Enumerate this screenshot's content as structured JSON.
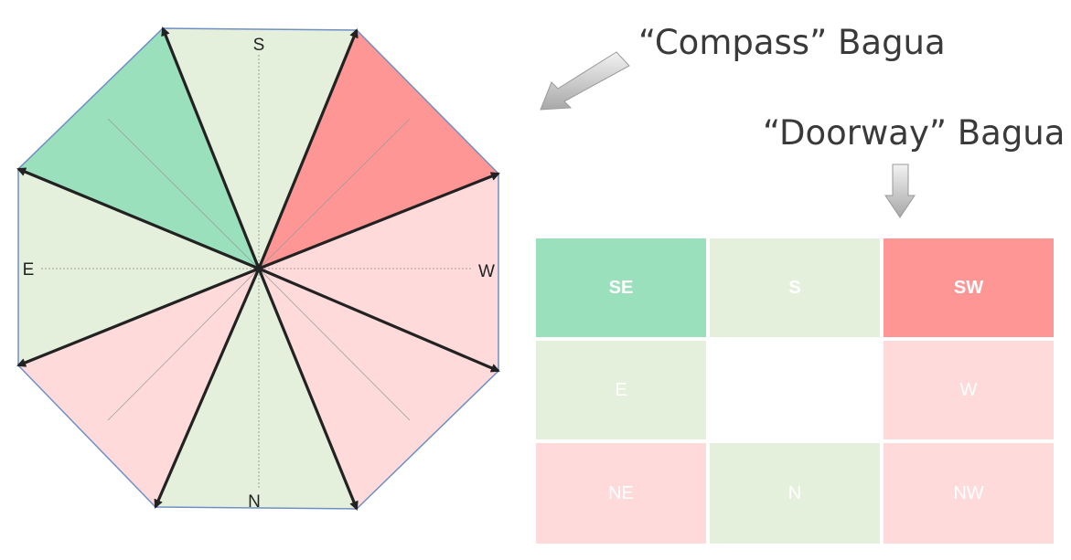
{
  "compass_bagua": {
    "title": "“Compass” Bagua",
    "labels": {
      "top": "S",
      "left": "E",
      "right": "W",
      "bottom": "N"
    },
    "sectors": [
      {
        "direction": "S",
        "color": "#e4f0dc"
      },
      {
        "direction": "SW",
        "color": "#ff9696"
      },
      {
        "direction": "W",
        "color": "#ffdada"
      },
      {
        "direction": "NW",
        "color": "#ffdada"
      },
      {
        "direction": "N",
        "color": "#e4f0dc"
      },
      {
        "direction": "NE",
        "color": "#ffdada"
      },
      {
        "direction": "E",
        "color": "#e4f0dc"
      },
      {
        "direction": "SE",
        "color": "#9ae0bd"
      }
    ]
  },
  "doorway_bagua": {
    "title": "“Doorway” Bagua",
    "rows": [
      [
        {
          "label": "SE",
          "color": "#9ae0bd",
          "bold": true
        },
        {
          "label": "S",
          "color": "#e4f0dc",
          "bold": true
        },
        {
          "label": "SW",
          "color": "#ff9696",
          "bold": true
        }
      ],
      [
        {
          "label": "E",
          "color": "#e4f0dc",
          "bold": false
        },
        {
          "label": "",
          "color": "#ffffff",
          "bold": false
        },
        {
          "label": "W",
          "color": "#ffdada",
          "bold": false
        }
      ],
      [
        {
          "label": "NE",
          "color": "#ffdada",
          "bold": false
        },
        {
          "label": "N",
          "color": "#e4f0dc",
          "bold": false
        },
        {
          "label": "NW",
          "color": "#ffdada",
          "bold": false
        }
      ]
    ]
  },
  "arrow_color": "#cfcfcf"
}
